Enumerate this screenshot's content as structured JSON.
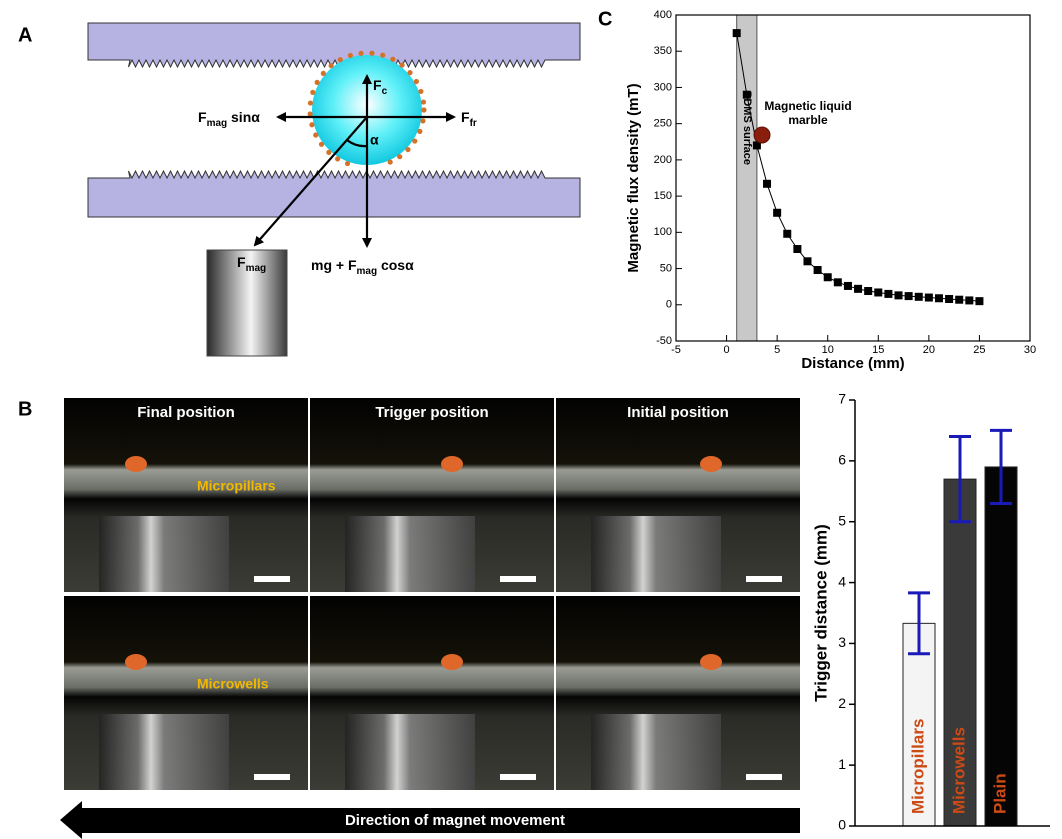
{
  "panel_labels": {
    "a": "A",
    "b": "B",
    "c": "C"
  },
  "diagram": {
    "force_up": {
      "base": "F",
      "sub": "c"
    },
    "force_left": {
      "base": "F",
      "sub": "mag",
      "tail": " sinα"
    },
    "force_right": {
      "base": "F",
      "sub": "fr"
    },
    "angle": "α",
    "magnet": {
      "base": "F",
      "sub": "mag"
    },
    "force_down": {
      "base": "mg + F",
      "sub": "mag",
      "tail": " cosα"
    }
  },
  "photos": {
    "columns": [
      "Final position",
      "Trigger position",
      "Initial position"
    ],
    "rows": [
      "Micropillars",
      "Microwells"
    ],
    "arrow": "Direction of magnet movement"
  },
  "chart_data": [
    {
      "type": "line",
      "xlabel": "Distance (mm)",
      "ylabel": "Magnetic flux density (mT)",
      "x": [
        1,
        2,
        3,
        4,
        5,
        6,
        7,
        8,
        9,
        10,
        11,
        12,
        13,
        14,
        15,
        16,
        17,
        18,
        19,
        20,
        21,
        22,
        23,
        24,
        25
      ],
      "values": [
        375,
        290,
        220,
        167,
        127,
        98,
        77,
        60,
        48,
        38,
        31,
        26,
        22,
        19,
        17,
        15,
        13,
        12,
        11,
        10,
        9,
        8,
        7,
        6,
        5
      ],
      "color": "#000000",
      "xlim": [
        -5,
        30
      ],
      "xticks": [
        -5,
        0,
        5,
        10,
        15,
        20,
        25,
        30
      ],
      "ylim": [
        -50,
        400
      ],
      "yticks": [
        -50,
        0,
        50,
        100,
        150,
        200,
        250,
        300,
        350,
        400
      ],
      "band": {
        "xlim": [
          1,
          3
        ],
        "label": "PDMS surface",
        "color": "#c8c8c8"
      },
      "annotation": [
        "Magnetic liquid",
        "marble"
      ]
    },
    {
      "type": "bar",
      "ylabel": "Trigger distance (mm)",
      "categories": [
        "Micropillars",
        "Microwells",
        "Plain"
      ],
      "values": [
        3.33,
        5.7,
        5.9
      ],
      "errors": [
        0.5,
        0.7,
        0.6
      ],
      "colors": [
        "#f4f4f4",
        "#3a3a3a",
        "#050505"
      ],
      "label_color": "#cc4a14",
      "error_color": "#1a1ab8",
      "ylim": [
        0,
        7
      ],
      "yticks": [
        0,
        1,
        2,
        3,
        4,
        5,
        6,
        7
      ]
    }
  ]
}
